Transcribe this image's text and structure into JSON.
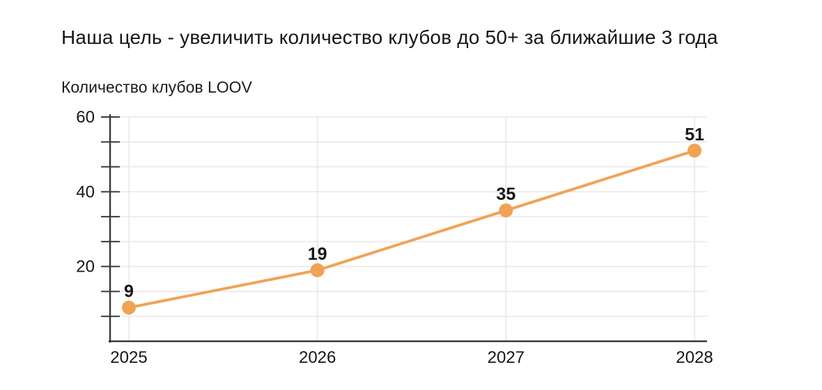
{
  "chart_data": {
    "type": "line",
    "title": "Наша цель - увеличить количество клубов до 50+ за ближайшие 3 года",
    "ylabel": "Количество клубов LOOV",
    "xlabel": "",
    "categories": [
      "2025",
      "2026",
      "2027",
      "2028"
    ],
    "series": [
      {
        "name": "Количество клубов LOOV",
        "values": [
          9,
          19,
          35,
          51
        ]
      }
    ],
    "data_labels": [
      "9",
      "19",
      "35",
      "51"
    ],
    "ylim": [
      0,
      60
    ],
    "yticks_labeled": [
      20,
      40,
      60
    ],
    "ytick_count": 9,
    "grid": true,
    "legend_position": "none",
    "colors": {
      "line": "#F0A355",
      "marker": "#F0A355",
      "text": "#161616",
      "grid": "#E7E7E7",
      "axis": "#3A3A3A"
    }
  }
}
